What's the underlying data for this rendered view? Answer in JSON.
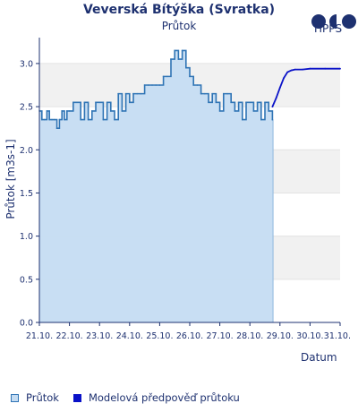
{
  "header": {
    "title": "Veverská Bítýška (Svratka)",
    "subtitle": "Průtok",
    "logo_text": "HPPS"
  },
  "colors": {
    "observed_line": "#2f74b5",
    "observed_fill": "#c5dcf2",
    "forecast_line": "#0a12c8",
    "band_shade": "#f1f1f1",
    "axis": "#1e3170"
  },
  "legend": {
    "observed_label": "Průtok",
    "forecast_label": "Modelová předpověď průtoku"
  },
  "chart_data": {
    "type": "line",
    "title": "Veverská Bítýška (Svratka)",
    "subtitle": "Průtok",
    "ylabel": "Průtok [m3s-1]",
    "xlabel": "Datum",
    "ylim": [
      0,
      3.3
    ],
    "yticks": [
      0.0,
      0.5,
      1.0,
      1.5,
      2.0,
      2.5,
      3.0
    ],
    "ytick_labels": [
      "0.0",
      "0.5",
      "1.0",
      "1.5",
      "2.0",
      "2.5",
      "3.0"
    ],
    "xlim": [
      "2024-10-21",
      "2024-10-31"
    ],
    "xtick_labels": [
      "21.10.",
      "22.10.",
      "23.10.",
      "24.10.",
      "25.10.",
      "26.10.",
      "27.10.",
      "28.10.",
      "29.10.",
      "30.10.",
      "31.10."
    ],
    "grid": "alternating horizontal bands",
    "legend_position": "bottom-left",
    "series": [
      {
        "name": "Průtok",
        "type": "area",
        "x": [
          "21.10. 00:00",
          "21.10. 02:00",
          "21.10. 04:00",
          "21.10. 06:00",
          "21.10. 08:00",
          "21.10. 10:00",
          "21.10. 12:00",
          "21.10. 14:00",
          "21.10. 16:00",
          "21.10. 18:00",
          "21.10. 20:00",
          "21.10. 22:00",
          "22.10. 00:00",
          "22.10. 03:00",
          "22.10. 06:00",
          "22.10. 09:00",
          "22.10. 12:00",
          "22.10. 15:00",
          "22.10. 18:00",
          "22.10. 21:00",
          "23.10. 00:00",
          "23.10. 03:00",
          "23.10. 06:00",
          "23.10. 09:00",
          "23.10. 12:00",
          "23.10. 15:00",
          "23.10. 18:00",
          "23.10. 21:00",
          "24.10. 00:00",
          "24.10. 03:00",
          "24.10. 06:00",
          "24.10. 09:00",
          "24.10. 12:00",
          "24.10. 15:00",
          "24.10. 18:00",
          "24.10. 21:00",
          "25.10. 00:00",
          "25.10. 03:00",
          "25.10. 06:00",
          "25.10. 09:00",
          "25.10. 12:00",
          "25.10. 15:00",
          "25.10. 18:00",
          "25.10. 21:00",
          "26.10. 00:00",
          "26.10. 03:00",
          "26.10. 06:00",
          "26.10. 09:00",
          "26.10. 12:00",
          "26.10. 15:00",
          "26.10. 18:00",
          "26.10. 21:00",
          "27.10. 00:00",
          "27.10. 03:00",
          "27.10. 06:00",
          "27.10. 09:00",
          "27.10. 12:00",
          "27.10. 15:00",
          "27.10. 18:00",
          "27.10. 21:00",
          "28.10. 00:00",
          "28.10. 03:00",
          "28.10. 06:00",
          "28.10. 09:00",
          "28.10. 12:00",
          "28.10. 15:00",
          "28.10. 18:00"
        ],
        "values": [
          2.45,
          2.35,
          2.35,
          2.45,
          2.35,
          2.35,
          2.35,
          2.25,
          2.35,
          2.45,
          2.35,
          2.45,
          2.45,
          2.55,
          2.55,
          2.35,
          2.55,
          2.35,
          2.45,
          2.55,
          2.55,
          2.35,
          2.55,
          2.45,
          2.35,
          2.65,
          2.45,
          2.65,
          2.55,
          2.65,
          2.65,
          2.65,
          2.75,
          2.75,
          2.75,
          2.75,
          2.75,
          2.85,
          2.85,
          3.05,
          3.15,
          3.05,
          3.15,
          2.95,
          2.85,
          2.75,
          2.75,
          2.65,
          2.65,
          2.55,
          2.65,
          2.55,
          2.45,
          2.65,
          2.65,
          2.55,
          2.45,
          2.55,
          2.35,
          2.55,
          2.55,
          2.45,
          2.55,
          2.35,
          2.55,
          2.45,
          2.35
        ]
      },
      {
        "name": "Modelová předpověď průtoku",
        "type": "line",
        "x": [
          "28.10. 18:00",
          "28.10. 21:00",
          "29.10. 00:00",
          "29.10. 03:00",
          "29.10. 06:00",
          "29.10. 09:00",
          "29.10. 12:00",
          "29.10. 18:00",
          "30.10. 00:00",
          "30.10. 12:00",
          "31.10. 00:00"
        ],
        "values": [
          2.5,
          2.6,
          2.72,
          2.83,
          2.9,
          2.92,
          2.93,
          2.93,
          2.94,
          2.94,
          2.94
        ]
      }
    ]
  }
}
